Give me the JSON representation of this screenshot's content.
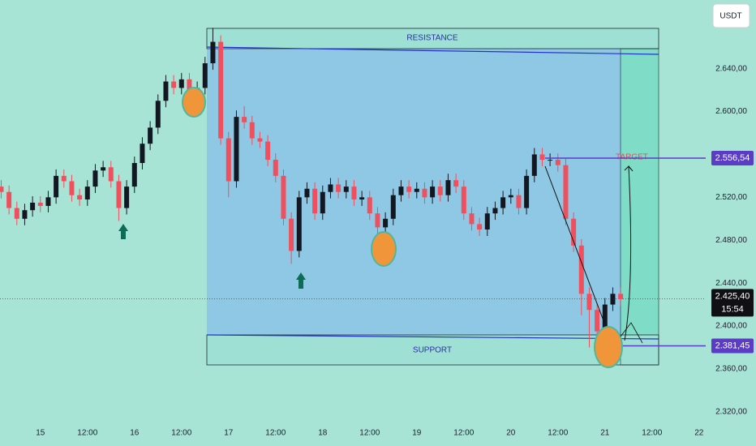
{
  "chart_data": {
    "type": "candlestick",
    "currency": "USDT",
    "x": [
      -10,
      -8,
      -6,
      -4,
      -2,
      0,
      2,
      4,
      6,
      8,
      10,
      12,
      14,
      16,
      18,
      20,
      22,
      24,
      26,
      28,
      30,
      32,
      34,
      36,
      38,
      40,
      42,
      44,
      46,
      48,
      50,
      52,
      54,
      56,
      58,
      60,
      62,
      64,
      66,
      68,
      70,
      72,
      74,
      76,
      78,
      80,
      82,
      84,
      86,
      88,
      90,
      92,
      94,
      96,
      98,
      100,
      102,
      104,
      106,
      108,
      110,
      112,
      114,
      116,
      118,
      120,
      122,
      124,
      126,
      128,
      130,
      132,
      134,
      136,
      138,
      140,
      142,
      144,
      146,
      148
    ],
    "open": [
      2.53,
      2.525,
      2.51,
      2.5,
      2.508,
      2.515,
      2.512,
      2.52,
      2.54,
      2.535,
      2.522,
      2.518,
      2.53,
      2.545,
      2.548,
      2.535,
      2.51,
      2.53,
      2.552,
      2.57,
      2.585,
      2.61,
      2.628,
      2.622,
      2.63,
      2.612,
      2.622,
      2.645,
      2.665,
      2.575,
      2.535,
      2.595,
      2.59,
      2.575,
      2.572,
      2.555,
      2.54,
      2.5,
      2.47,
      2.52,
      2.528,
      2.505,
      2.525,
      2.532,
      2.525,
      2.53,
      2.518,
      2.52,
      2.505,
      2.492,
      2.5,
      2.522,
      2.53,
      2.525,
      2.528,
      2.52,
      2.53,
      2.522,
      2.536,
      2.53,
      2.505,
      2.495,
      2.49,
      2.505,
      2.51,
      2.52,
      2.522,
      2.51,
      2.54,
      2.56,
      2.555,
      2.555,
      2.55,
      2.5,
      2.475,
      2.43,
      2.415,
      2.395,
      2.42,
      2.43
    ],
    "high": [
      2.536,
      2.531,
      2.516,
      2.514,
      2.521,
      2.521,
      2.526,
      2.546,
      2.546,
      2.541,
      2.528,
      2.536,
      2.551,
      2.554,
      2.554,
      2.541,
      2.536,
      2.558,
      2.576,
      2.591,
      2.616,
      2.634,
      2.634,
      2.636,
      2.636,
      2.628,
      2.651,
      2.678,
      2.671,
      2.581,
      2.601,
      2.605,
      2.596,
      2.581,
      2.578,
      2.561,
      2.546,
      2.506,
      2.526,
      2.534,
      2.534,
      2.531,
      2.538,
      2.538,
      2.536,
      2.536,
      2.526,
      2.526,
      2.511,
      2.506,
      2.528,
      2.536,
      2.536,
      2.534,
      2.534,
      2.536,
      2.536,
      2.542,
      2.542,
      2.536,
      2.511,
      2.501,
      2.511,
      2.516,
      2.526,
      2.528,
      2.528,
      2.546,
      2.566,
      2.566,
      2.561,
      2.561,
      2.556,
      2.506,
      2.481,
      2.436,
      2.421,
      2.426,
      2.436,
      2.436
    ],
    "low": [
      2.519,
      2.504,
      2.494,
      2.494,
      2.502,
      2.506,
      2.506,
      2.514,
      2.529,
      2.516,
      2.512,
      2.512,
      2.524,
      2.539,
      2.529,
      2.498,
      2.504,
      2.524,
      2.546,
      2.564,
      2.579,
      2.604,
      2.616,
      2.616,
      2.606,
      2.606,
      2.616,
      2.639,
      2.569,
      2.52,
      2.529,
      2.584,
      2.569,
      2.566,
      2.549,
      2.534,
      2.494,
      2.458,
      2.464,
      2.514,
      2.499,
      2.499,
      2.519,
      2.519,
      2.519,
      2.512,
      2.512,
      2.499,
      2.486,
      2.486,
      2.494,
      2.516,
      2.519,
      2.519,
      2.514,
      2.514,
      2.516,
      2.516,
      2.524,
      2.499,
      2.489,
      2.484,
      2.484,
      2.499,
      2.504,
      2.514,
      2.504,
      2.504,
      2.534,
      2.549,
      2.549,
      2.544,
      2.494,
      2.469,
      2.41,
      2.38,
      2.37,
      2.389,
      2.414,
      2.419
    ],
    "close": [
      2.525,
      2.51,
      2.5,
      2.508,
      2.515,
      2.512,
      2.52,
      2.54,
      2.535,
      2.522,
      2.518,
      2.53,
      2.545,
      2.548,
      2.535,
      2.51,
      2.53,
      2.552,
      2.57,
      2.585,
      2.61,
      2.628,
      2.622,
      2.63,
      2.612,
      2.622,
      2.645,
      2.665,
      2.575,
      2.535,
      2.595,
      2.59,
      2.575,
      2.572,
      2.555,
      2.54,
      2.5,
      2.47,
      2.52,
      2.528,
      2.505,
      2.525,
      2.532,
      2.525,
      2.53,
      2.518,
      2.52,
      2.505,
      2.492,
      2.5,
      2.522,
      2.53,
      2.525,
      2.528,
      2.52,
      2.53,
      2.522,
      2.536,
      2.53,
      2.505,
      2.495,
      2.49,
      2.505,
      2.51,
      2.52,
      2.522,
      2.51,
      2.54,
      2.56,
      2.555,
      2.555,
      2.55,
      2.5,
      2.475,
      2.43,
      2.415,
      2.395,
      2.42,
      2.43,
      2.425
    ],
    "up_color": "#131722",
    "down_color": "#f04f5d",
    "xlim": [
      -10.3,
      169.7
    ],
    "xticks": [
      {
        "value": 0,
        "label": "15"
      },
      {
        "value": 12,
        "label": "12:00"
      },
      {
        "value": 24,
        "label": "16"
      },
      {
        "value": 36,
        "label": "12:00"
      },
      {
        "value": 48,
        "label": "17"
      },
      {
        "value": 60,
        "label": "12:00"
      },
      {
        "value": 72,
        "label": "18"
      },
      {
        "value": 84,
        "label": "12:00"
      },
      {
        "value": 96,
        "label": "19"
      },
      {
        "value": 108,
        "label": "12:00"
      },
      {
        "value": 120,
        "label": "20"
      },
      {
        "value": 132,
        "label": "12:00"
      },
      {
        "value": 144,
        "label": "21"
      },
      {
        "value": 156,
        "label": "12:00"
      },
      {
        "value": 168,
        "label": "22"
      }
    ],
    "ylim": [
      2.307,
      2.704
    ],
    "yticks": [
      {
        "value": 2.64,
        "label": "2.640,00"
      },
      {
        "value": 2.6,
        "label": "2.600,00"
      },
      {
        "value": 2.52,
        "label": "2.520,00"
      },
      {
        "value": 2.48,
        "label": "2.480,00"
      },
      {
        "value": 2.44,
        "label": "2.440,00"
      },
      {
        "value": 2.4,
        "label": "2.400,00"
      },
      {
        "value": 2.36,
        "label": "2.360,00"
      },
      {
        "value": 2.32,
        "label": "2.320,00"
      }
    ],
    "annotations": {
      "resistance": "RESISTANCE",
      "support": "SUPPORT",
      "target": "TARGET"
    },
    "price_levels": {
      "target": {
        "value": 2.55654,
        "label": "2.556,54"
      },
      "support": {
        "value": 2.38145,
        "label": "2.381,45"
      },
      "current": {
        "value": 2.4254,
        "label": "2.425,40",
        "countdown": "15:54"
      }
    }
  }
}
